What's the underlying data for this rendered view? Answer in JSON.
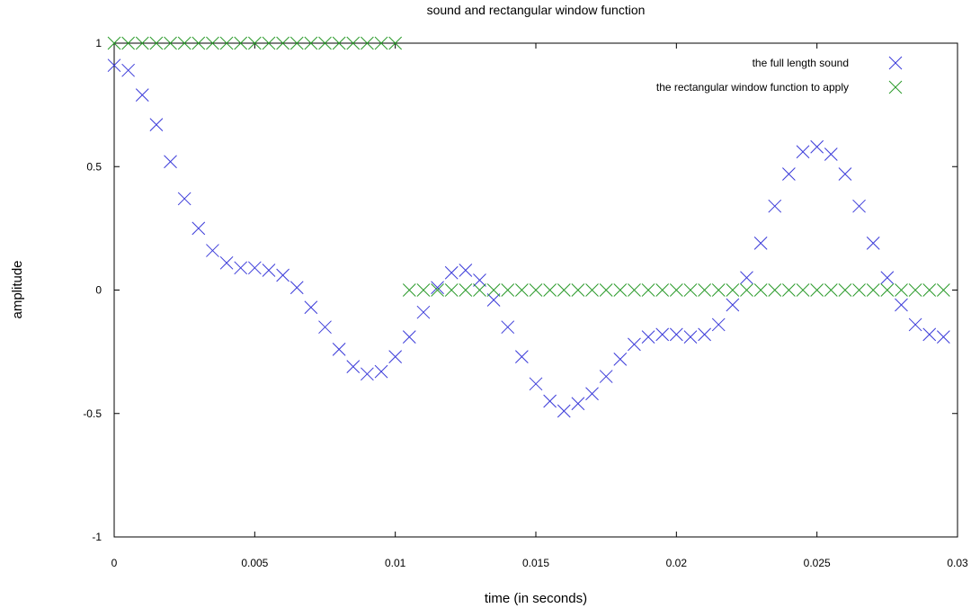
{
  "chart_data": {
    "type": "scatter",
    "title": "sound and rectangular window function",
    "xlabel": "time (in seconds)",
    "ylabel": "amplitude",
    "xlim": [
      0,
      0.03
    ],
    "ylim": [
      -1,
      1
    ],
    "xticks": [
      0,
      0.005,
      0.01,
      0.015,
      0.02,
      0.025,
      0.03
    ],
    "xtick_labels": [
      "0",
      "0.005",
      "0.01",
      "0.015",
      "0.02",
      "0.025",
      "0.03"
    ],
    "yticks": [
      -1,
      -0.5,
      0,
      0.5,
      1
    ],
    "ytick_labels": [
      "-1",
      "-0.5",
      "0",
      "0.5",
      "1"
    ],
    "grid": false,
    "legend_position": "top-right",
    "series": [
      {
        "name": "the full length sound",
        "color": "#3b3bd9",
        "marker": "x",
        "x": [
          0,
          0.0005,
          0.001,
          0.0015,
          0.002,
          0.0025,
          0.003,
          0.0035,
          0.004,
          0.0045,
          0.005,
          0.0055,
          0.006,
          0.0065,
          0.007,
          0.0075,
          0.008,
          0.0085,
          0.009,
          0.0095,
          0.01,
          0.0105,
          0.011,
          0.0115,
          0.012,
          0.0125,
          0.013,
          0.0135,
          0.014,
          0.0145,
          0.015,
          0.0155,
          0.016,
          0.0165,
          0.017,
          0.0175,
          0.018,
          0.0185,
          0.019,
          0.0195,
          0.02,
          0.0205,
          0.021,
          0.0215,
          0.022,
          0.0225,
          0.023,
          0.0235,
          0.024,
          0.0245,
          0.025,
          0.0255,
          0.026,
          0.0265,
          0.027,
          0.0275,
          0.028,
          0.0285,
          0.029,
          0.0295
        ],
        "y": [
          0.91,
          0.89,
          0.79,
          0.67,
          0.52,
          0.37,
          0.25,
          0.16,
          0.11,
          0.09,
          0.09,
          0.08,
          0.06,
          0.01,
          -0.07,
          -0.15,
          -0.24,
          -0.31,
          -0.34,
          -0.33,
          -0.27,
          -0.19,
          -0.09,
          0.01,
          0.07,
          0.08,
          0.04,
          -0.04,
          -0.15,
          -0.27,
          -0.38,
          -0.45,
          -0.49,
          -0.46,
          -0.42,
          -0.35,
          -0.28,
          -0.22,
          -0.19,
          -0.18,
          -0.18,
          -0.19,
          -0.18,
          -0.14,
          -0.06,
          0.05,
          0.19,
          0.34,
          0.47,
          0.56,
          0.58,
          0.55,
          0.47,
          0.34,
          0.19,
          0.05,
          -0.06,
          -0.14,
          -0.18,
          -0.19
        ]
      },
      {
        "name": "the rectangular window function to apply",
        "color": "#2a9a2a",
        "marker": "x",
        "x": [
          0,
          0.0005,
          0.001,
          0.0015,
          0.002,
          0.0025,
          0.003,
          0.0035,
          0.004,
          0.0045,
          0.005,
          0.0055,
          0.006,
          0.0065,
          0.007,
          0.0075,
          0.008,
          0.0085,
          0.009,
          0.0095,
          0.01,
          0.0105,
          0.011,
          0.0115,
          0.012,
          0.0125,
          0.013,
          0.0135,
          0.014,
          0.0145,
          0.015,
          0.0155,
          0.016,
          0.0165,
          0.017,
          0.0175,
          0.018,
          0.0185,
          0.019,
          0.0195,
          0.02,
          0.0205,
          0.021,
          0.0215,
          0.022,
          0.0225,
          0.023,
          0.0235,
          0.024,
          0.0245,
          0.025,
          0.0255,
          0.026,
          0.0265,
          0.027,
          0.0275,
          0.028,
          0.0285,
          0.029,
          0.0295
        ],
        "y": [
          1,
          1,
          1,
          1,
          1,
          1,
          1,
          1,
          1,
          1,
          1,
          1,
          1,
          1,
          1,
          1,
          1,
          1,
          1,
          1,
          1,
          0,
          0,
          0,
          0,
          0,
          0,
          0,
          0,
          0,
          0,
          0,
          0,
          0,
          0,
          0,
          0,
          0,
          0,
          0,
          0,
          0,
          0,
          0,
          0,
          0,
          0,
          0,
          0,
          0,
          0,
          0,
          0,
          0,
          0,
          0,
          0,
          0,
          0,
          0
        ]
      }
    ]
  }
}
